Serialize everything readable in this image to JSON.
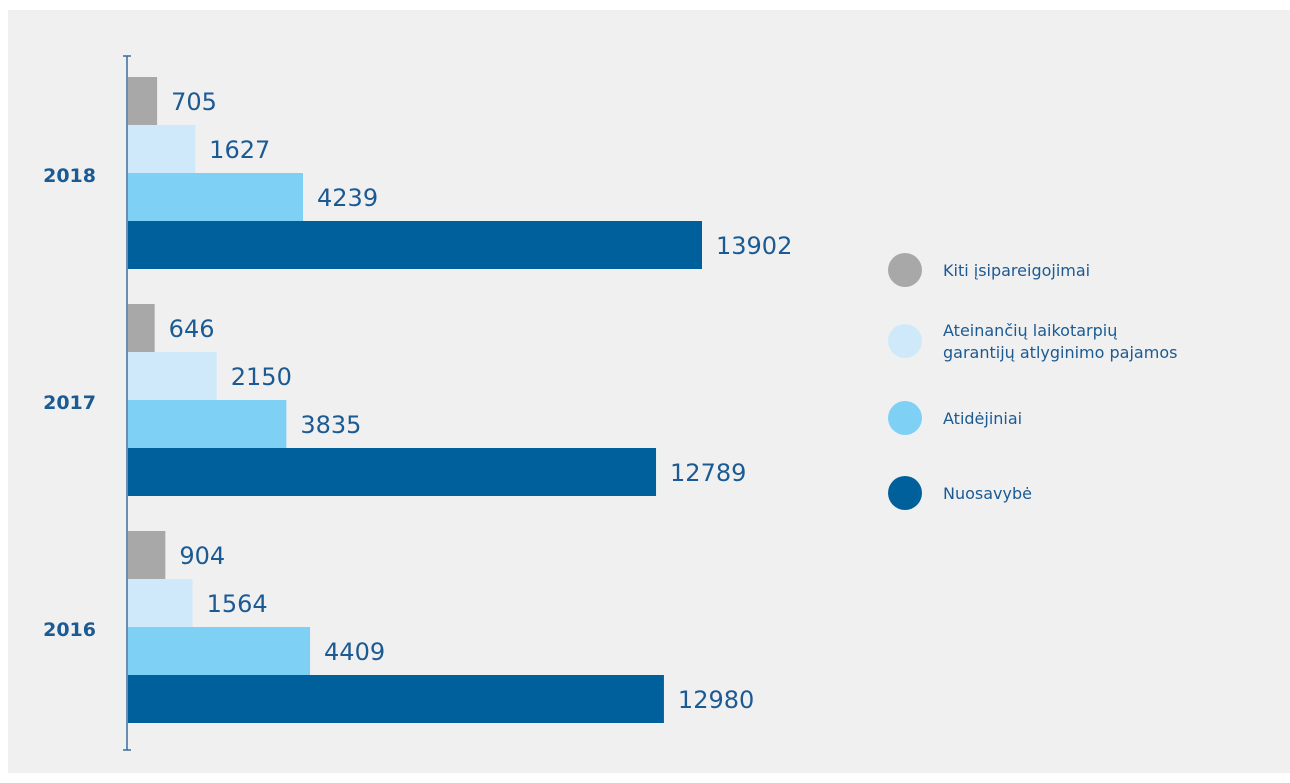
{
  "chart_data": {
    "type": "bar",
    "orientation": "horizontal",
    "categories": [
      "2018",
      "2017",
      "2016"
    ],
    "series": [
      {
        "name": "Kiti įsipareigojimai",
        "color": "#a8a8a8",
        "values": [
          705,
          646,
          904
        ]
      },
      {
        "name": "Ateinančių laikotarpių garantijų atlyginimo pajamos",
        "color": "#cfe9fb",
        "values": [
          1627,
          2150,
          1564
        ]
      },
      {
        "name": "Atidėjiniai",
        "color": "#7fd0f5",
        "values": [
          4239,
          3835,
          4409
        ]
      },
      {
        "name": "Nuosavybė",
        "color": "#00609c",
        "values": [
          13902,
          12789,
          12980
        ]
      }
    ],
    "legend": {
      "position": "right",
      "entries": [
        {
          "lines": [
            "Kiti įsipareigojimai"
          ],
          "color": "#a8a8a8"
        },
        {
          "lines": [
            "Ateinančių laikotarpių",
            "garantijų atlyginimo pajamos"
          ],
          "color": "#cfe9fb"
        },
        {
          "lines": [
            "Atidėjiniai"
          ],
          "color": "#7fd0f5"
        },
        {
          "lines": [
            "Nuosavybė"
          ],
          "color": "#00609c"
        }
      ]
    },
    "grid": false,
    "xlim": [
      0,
      14000
    ],
    "text_color": "#1b5a93",
    "background": "#f0f0f0",
    "axis_color": "#3a6c9a"
  }
}
